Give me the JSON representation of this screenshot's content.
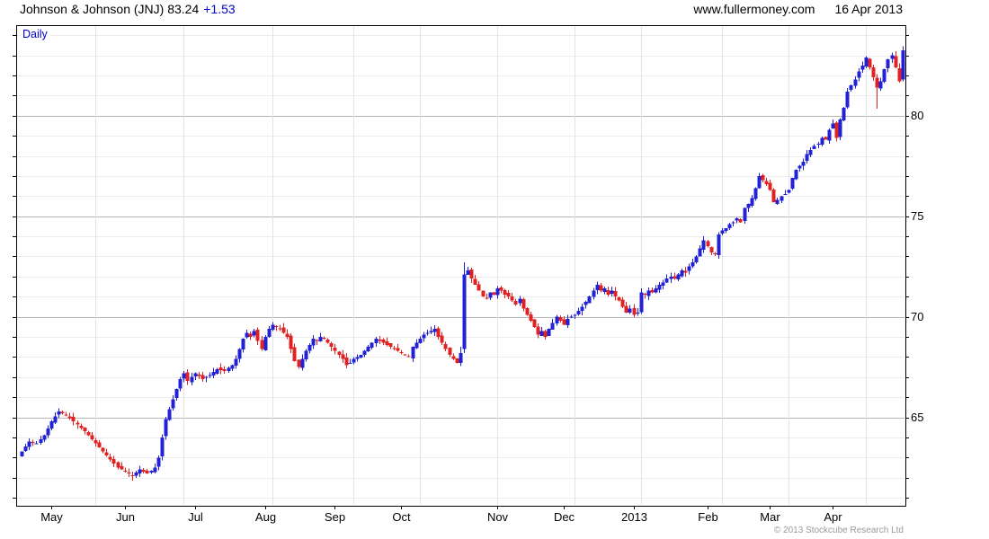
{
  "header": {
    "title_main": "Johnson & Johnson (JNJ) 83.24",
    "title_change": "+1.53",
    "site": "www.fullermoney.com",
    "date": "16 Apr 2013"
  },
  "chart": {
    "mode_label": "Daily",
    "copyright": "© 2013 Stockcube Research Ltd"
  },
  "colors": {
    "up": "#2121d6",
    "down": "#e02222",
    "accent_text": "#0000cd",
    "grid_minor": "#ececec",
    "grid_major": "#b5b5b5",
    "grid_month": "#e3e3e3",
    "border": "#000000",
    "tick": "#000000",
    "copyright": "#9a9a9a"
  },
  "chart_data": {
    "type": "candlestick",
    "instrument": "Johnson & Johnson (JNJ)",
    "timeframe": "Daily",
    "last_price": 83.24,
    "change": 1.53,
    "date_range": "May 2012 - 16 Apr 2013",
    "y_axis": {
      "min": 60.6,
      "max": 84.5,
      "tick_labels": [
        65,
        70,
        75,
        80
      ],
      "minor_tick_step": 1,
      "label_side": "right",
      "grid": true
    },
    "x_axis": {
      "month_labels": [
        "May",
        "Jun",
        "Jul",
        "Aug",
        "Sep",
        "Oct",
        "Nov",
        "Dec",
        "2013",
        "Feb",
        "Mar",
        "Apr"
      ],
      "label_days": [
        8,
        28,
        47,
        66,
        85,
        103,
        129,
        147,
        166,
        186,
        203,
        220
      ],
      "gridline_days": [
        20,
        44,
        68,
        90,
        108,
        129,
        150,
        168,
        190,
        208,
        229
      ],
      "grid": true
    },
    "months": {
      "start_day_index": [
        0,
        22,
        43,
        64,
        87,
        106,
        127,
        148,
        168,
        189,
        208,
        228
      ],
      "total_days": 240
    },
    "close_anchors": [
      [
        0,
        63.3
      ],
      [
        2,
        63.8
      ],
      [
        4,
        63.7
      ],
      [
        6,
        64.1
      ],
      [
        8,
        64.8
      ],
      [
        10,
        65.3
      ],
      [
        12,
        65.1
      ],
      [
        14,
        64.8
      ],
      [
        17,
        64.3
      ],
      [
        20,
        63.7
      ],
      [
        23,
        63.1
      ],
      [
        26,
        62.5
      ],
      [
        28,
        62.3
      ],
      [
        30,
        62.1
      ],
      [
        32,
        62.4
      ],
      [
        34,
        62.2
      ],
      [
        36,
        62.5
      ],
      [
        37,
        63.0
      ],
      [
        38,
        64.0
      ],
      [
        39,
        64.9
      ],
      [
        40,
        65.4
      ],
      [
        41,
        65.9
      ],
      [
        42,
        66.4
      ],
      [
        43,
        66.9
      ],
      [
        44,
        67.2
      ],
      [
        45,
        66.8
      ],
      [
        47,
        67.2
      ],
      [
        49,
        66.9
      ],
      [
        51,
        67.1
      ],
      [
        53,
        67.4
      ],
      [
        55,
        67.3
      ],
      [
        57,
        67.6
      ],
      [
        58,
        67.9
      ],
      [
        59,
        68.4
      ],
      [
        60,
        68.9
      ],
      [
        61,
        69.2
      ],
      [
        62,
        69.0
      ],
      [
        63,
        69.3
      ],
      [
        64,
        68.8
      ],
      [
        65,
        68.4
      ],
      [
        66,
        69.0
      ],
      [
        67,
        69.4
      ],
      [
        68,
        69.6
      ],
      [
        69,
        69.5
      ],
      [
        70,
        69.4
      ],
      [
        71,
        69.2
      ],
      [
        72,
        69.0
      ],
      [
        73,
        68.4
      ],
      [
        74,
        67.8
      ],
      [
        75,
        67.5
      ],
      [
        76,
        67.9
      ],
      [
        77,
        68.3
      ],
      [
        78,
        68.6
      ],
      [
        79,
        68.9
      ],
      [
        80,
        68.8
      ],
      [
        81,
        69.0
      ],
      [
        82,
        68.9
      ],
      [
        83,
        68.7
      ],
      [
        84,
        68.5
      ],
      [
        85,
        68.3
      ],
      [
        86,
        68.1
      ],
      [
        87,
        67.9
      ],
      [
        88,
        67.6
      ],
      [
        89,
        67.7
      ],
      [
        90,
        67.9
      ],
      [
        91,
        68.0
      ],
      [
        92,
        68.1
      ],
      [
        93,
        68.3
      ],
      [
        94,
        68.5
      ],
      [
        95,
        68.7
      ],
      [
        96,
        68.9
      ],
      [
        97,
        68.8
      ],
      [
        98,
        68.7
      ],
      [
        99,
        68.6
      ],
      [
        101,
        68.4
      ],
      [
        103,
        68.2
      ],
      [
        105,
        68.0
      ],
      [
        106,
        68.5
      ],
      [
        107,
        68.7
      ],
      [
        108,
        68.9
      ],
      [
        109,
        69.1
      ],
      [
        110,
        69.2
      ],
      [
        111,
        69.3
      ],
      [
        112,
        69.4
      ],
      [
        113,
        69.0
      ],
      [
        114,
        68.7
      ],
      [
        115,
        68.4
      ],
      [
        116,
        68.1
      ],
      [
        117,
        67.9
      ],
      [
        118,
        67.7
      ],
      [
        119,
        68.2
      ],
      [
        120,
        72.1
      ],
      [
        121,
        72.3
      ],
      [
        122,
        71.9
      ],
      [
        123,
        71.6
      ],
      [
        124,
        71.3
      ],
      [
        125,
        71.0
      ],
      [
        126,
        70.9
      ],
      [
        127,
        71.2
      ],
      [
        128,
        71.1
      ],
      [
        129,
        71.4
      ],
      [
        130,
        71.3
      ],
      [
        131,
        71.1
      ],
      [
        132,
        71.0
      ],
      [
        133,
        70.8
      ],
      [
        134,
        70.6
      ],
      [
        135,
        70.9
      ],
      [
        136,
        70.4
      ],
      [
        137,
        70.1
      ],
      [
        138,
        69.8
      ],
      [
        139,
        69.5
      ],
      [
        140,
        69.1
      ],
      [
        141,
        69.3
      ],
      [
        142,
        69.0
      ],
      [
        143,
        69.4
      ],
      [
        144,
        69.7
      ],
      [
        145,
        70.0
      ],
      [
        146,
        69.8
      ],
      [
        147,
        69.6
      ],
      [
        148,
        69.9
      ],
      [
        150,
        70.1
      ],
      [
        152,
        70.5
      ],
      [
        154,
        71.0
      ],
      [
        155,
        71.3
      ],
      [
        156,
        71.6
      ],
      [
        157,
        71.3
      ],
      [
        158,
        71.4
      ],
      [
        159,
        71.1
      ],
      [
        160,
        71.3
      ],
      [
        161,
        71.0
      ],
      [
        162,
        70.8
      ],
      [
        163,
        70.5
      ],
      [
        164,
        70.2
      ],
      [
        165,
        70.4
      ],
      [
        166,
        70.1
      ],
      [
        167,
        70.2
      ],
      [
        168,
        71.2
      ],
      [
        169,
        71.1
      ],
      [
        170,
        71.3
      ],
      [
        171,
        71.2
      ],
      [
        172,
        71.4
      ],
      [
        173,
        71.6
      ],
      [
        174,
        71.7
      ],
      [
        175,
        71.9
      ],
      [
        176,
        72.0
      ],
      [
        177,
        71.9
      ],
      [
        178,
        72.1
      ],
      [
        179,
        72.3
      ],
      [
        180,
        72.2
      ],
      [
        181,
        72.5
      ],
      [
        182,
        72.7
      ],
      [
        183,
        73.0
      ],
      [
        184,
        73.4
      ],
      [
        185,
        73.8
      ],
      [
        186,
        73.5
      ],
      [
        187,
        73.2
      ],
      [
        188,
        73.1
      ],
      [
        189,
        74.1
      ],
      [
        190,
        74.3
      ],
      [
        191,
        74.4
      ],
      [
        192,
        74.6
      ],
      [
        193,
        74.7
      ],
      [
        194,
        74.9
      ],
      [
        195,
        74.7
      ],
      [
        196,
        75.4
      ],
      [
        197,
        75.6
      ],
      [
        198,
        75.9
      ],
      [
        199,
        76.4
      ],
      [
        200,
        77.0
      ],
      [
        201,
        76.8
      ],
      [
        202,
        76.6
      ],
      [
        203,
        76.3
      ],
      [
        204,
        75.7
      ],
      [
        205,
        75.8
      ],
      [
        206,
        76.0
      ],
      [
        207,
        76.1
      ],
      [
        208,
        76.3
      ],
      [
        209,
        76.9
      ],
      [
        210,
        77.3
      ],
      [
        211,
        77.5
      ],
      [
        212,
        77.7
      ],
      [
        213,
        78.1
      ],
      [
        214,
        78.3
      ],
      [
        215,
        78.5
      ],
      [
        216,
        78.6
      ],
      [
        217,
        78.9
      ],
      [
        218,
        78.8
      ],
      [
        219,
        79.3
      ],
      [
        220,
        79.6
      ],
      [
        221,
        78.9
      ],
      [
        222,
        79.8
      ],
      [
        223,
        80.4
      ],
      [
        224,
        81.2
      ],
      [
        225,
        81.5
      ],
      [
        226,
        81.8
      ],
      [
        227,
        82.2
      ],
      [
        228,
        82.5
      ],
      [
        229,
        82.9
      ],
      [
        230,
        82.4
      ],
      [
        231,
        81.9
      ],
      [
        232,
        81.4
      ],
      [
        233,
        81.7
      ],
      [
        234,
        82.3
      ],
      [
        235,
        82.8
      ],
      [
        236,
        83.0
      ],
      [
        237,
        82.4
      ],
      [
        238,
        81.71
      ],
      [
        239,
        83.24
      ]
    ],
    "specials": {
      "30": {
        "low": 61.85
      },
      "119": {
        "high": 68.5
      },
      "120": {
        "open": 68.4,
        "high": 72.7,
        "low": 68.2
      },
      "232": {
        "low": 80.35
      },
      "237": {
        "high": 83.2
      },
      "238": {
        "open": 82.35,
        "high": 82.6
      },
      "239": {
        "open": 81.8,
        "high": 83.45,
        "low": 81.7
      }
    }
  }
}
